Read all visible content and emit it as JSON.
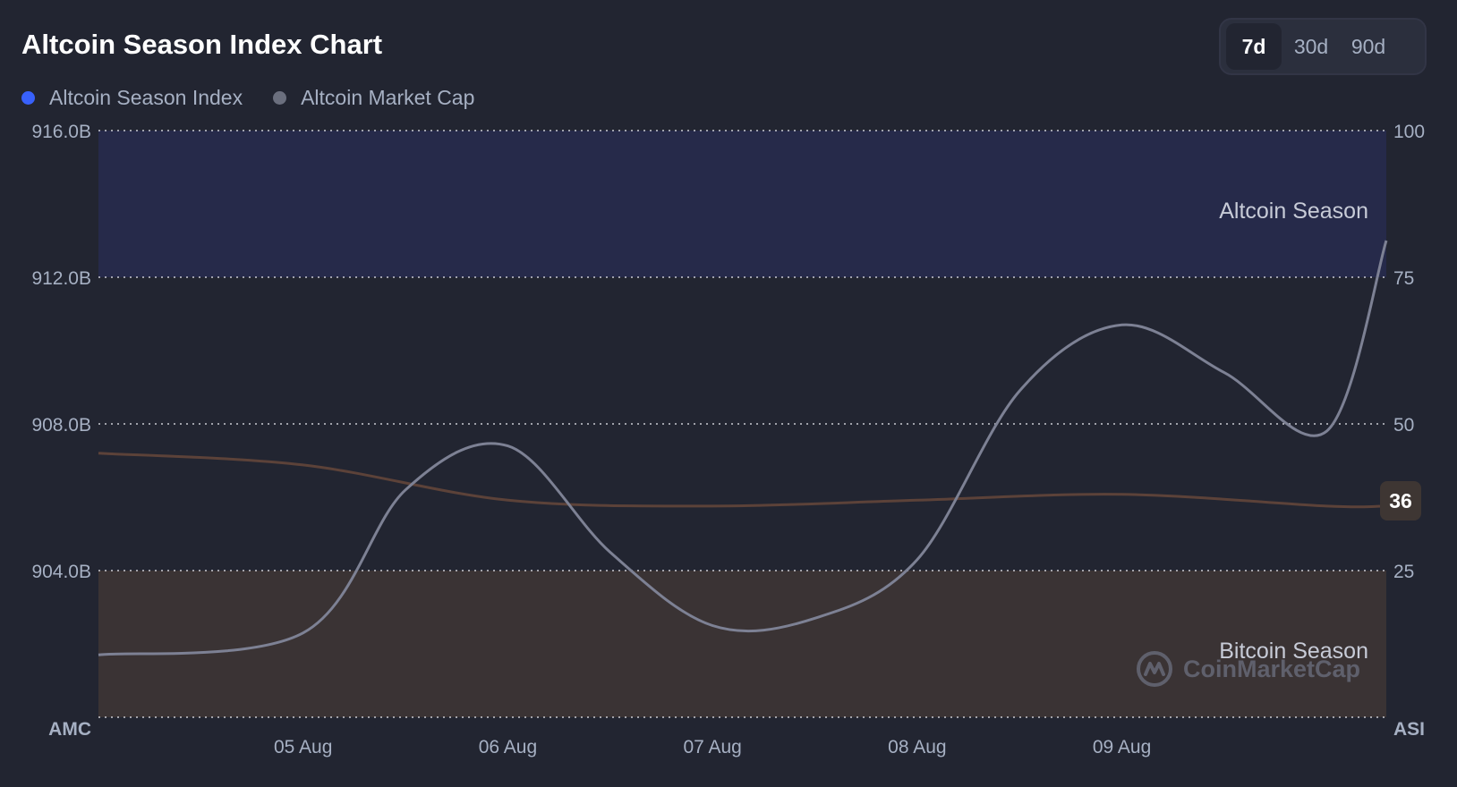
{
  "header": {
    "title": "Altcoin Season Index Chart"
  },
  "legend": [
    {
      "label": "Altcoin Season Index",
      "color": "#3861fb"
    },
    {
      "label": "Altcoin Market Cap",
      "color": "#6b6f7e"
    }
  ],
  "range_toggle": [
    {
      "label": "7d",
      "active": true
    },
    {
      "label": "30d",
      "active": false
    },
    {
      "label": "90d",
      "active": false
    }
  ],
  "badge": {
    "value": "36"
  },
  "watermark": {
    "text": "CoinMarketCap",
    "icon": "coinmarketcap-logo-icon"
  },
  "colors": {
    "background": "#222531",
    "altcoin_zone": "#262a4a",
    "bitcoin_zone": "#3a3334",
    "index_line": "#5c4239",
    "market_cap_line": "#7d8194"
  },
  "chart_data": {
    "type": "line",
    "title": "Altcoin Season Index Chart",
    "x_tick_labels": [
      "05 Aug",
      "06 Aug",
      "07 Aug",
      "08 Aug",
      "09 Aug"
    ],
    "x_range": [
      "04 Aug 00:00",
      "10 Aug 07:00"
    ],
    "left_axis": {
      "title": "AMC",
      "ticks": [
        "916.0B",
        "912.0B",
        "908.0B",
        "904.0B"
      ],
      "range": [
        900,
        916
      ]
    },
    "right_axis": {
      "title": "ASI",
      "ticks": [
        "100",
        "75",
        "50",
        "25"
      ],
      "range": [
        0,
        100
      ]
    },
    "zones": [
      {
        "label": "Altcoin Season",
        "axis": "right",
        "from": 75,
        "to": 100
      },
      {
        "label": "Bitcoin Season",
        "axis": "right",
        "from": 0,
        "to": 25
      }
    ],
    "gridlines": [
      100,
      75,
      50,
      25,
      0
    ],
    "series": [
      {
        "name": "Altcoin Market Cap",
        "axis": "left",
        "unit": "B",
        "points": [
          {
            "x": "04 Aug 00:00",
            "y": 901.7
          },
          {
            "x": "05 Aug 00:00",
            "y": 902.3
          },
          {
            "x": "05 Aug 12:00",
            "y": 906.2
          },
          {
            "x": "06 Aug 00:00",
            "y": 907.4
          },
          {
            "x": "06 Aug 12:00",
            "y": 904.5
          },
          {
            "x": "07 Aug 00:00",
            "y": 902.5
          },
          {
            "x": "07 Aug 12:00",
            "y": 902.7
          },
          {
            "x": "08 Aug 00:00",
            "y": 904.3
          },
          {
            "x": "08 Aug 12:00",
            "y": 908.9
          },
          {
            "x": "09 Aug 00:00",
            "y": 910.7
          },
          {
            "x": "09 Aug 12:00",
            "y": 909.4
          },
          {
            "x": "10 Aug 00:00",
            "y": 907.8
          },
          {
            "x": "10 Aug 07:00",
            "y": 913.0
          }
        ]
      },
      {
        "name": "Altcoin Season Index",
        "axis": "right",
        "points": [
          {
            "x": "04 Aug 00:00",
            "y": 45
          },
          {
            "x": "05 Aug 00:00",
            "y": 43
          },
          {
            "x": "06 Aug 00:00",
            "y": 37
          },
          {
            "x": "07 Aug 00:00",
            "y": 36
          },
          {
            "x": "08 Aug 00:00",
            "y": 37
          },
          {
            "x": "09 Aug 00:00",
            "y": 38
          },
          {
            "x": "10 Aug 00:00",
            "y": 36
          },
          {
            "x": "10 Aug 07:00",
            "y": 36
          }
        ]
      }
    ]
  }
}
